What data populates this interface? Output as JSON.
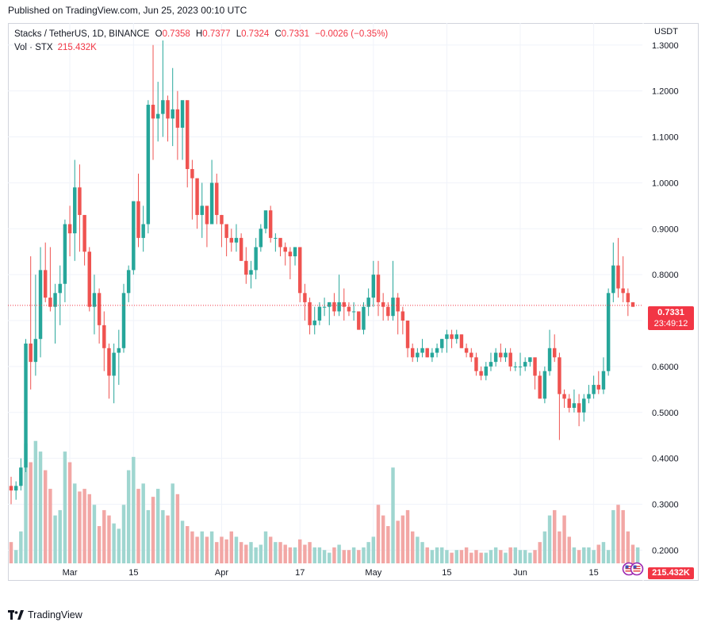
{
  "header": {
    "published": "Published on TradingView.com, Jun 25, 2023 00:10 UTC"
  },
  "legend": {
    "symbol": "Stacks / TetherUS, 1D, BINANCE",
    "o_label": "O",
    "o_value": "0.7358",
    "h_label": "H",
    "h_value": "0.7377",
    "l_label": "L",
    "l_value": "0.7324",
    "c_label": "C",
    "c_value": "0.7331",
    "change": "−0.0026 (−0.35%)",
    "vol_label": "Vol · STX",
    "vol_value": "215.432K"
  },
  "price_axis": {
    "currency": "USDT",
    "labels": [
      "1.3000",
      "1.2000",
      "1.1000",
      "1.0000",
      "0.9000",
      "0.8000",
      "0.7000",
      "0.6000",
      "0.5000",
      "0.4000",
      "0.3000",
      "0.2000"
    ]
  },
  "time_axis": {
    "labels": [
      "Mar",
      "15",
      "Apr",
      "17",
      "May",
      "15",
      "Jun",
      "15"
    ]
  },
  "last_price_tag": {
    "price": "0.7331",
    "countdown": "23:49:12"
  },
  "volume_tag": "215.432K",
  "footer": {
    "brand": "TradingView"
  },
  "colors": {
    "up": "#26a69a",
    "down": "#ef5350",
    "up_vol": "#9fd6d0",
    "down_vol": "#f2a7a5",
    "grid": "#f0f3fa",
    "last_line": "#f23645"
  },
  "chart_data": {
    "type": "candlestick",
    "title": "Stacks / TetherUS, 1D, BINANCE",
    "ylim": [
      0.18,
      1.31
    ],
    "xlabel": "",
    "ylabel": "USDT",
    "candles": [
      [
        0.34,
        0.36,
        0.3,
        0.33
      ],
      [
        0.33,
        0.35,
        0.31,
        0.34
      ],
      [
        0.34,
        0.4,
        0.33,
        0.38
      ],
      [
        0.38,
        0.66,
        0.37,
        0.65
      ],
      [
        0.65,
        0.84,
        0.55,
        0.61
      ],
      [
        0.61,
        0.8,
        0.58,
        0.66
      ],
      [
        0.66,
        0.86,
        0.62,
        0.81
      ],
      [
        0.81,
        0.87,
        0.74,
        0.75
      ],
      [
        0.75,
        0.86,
        0.72,
        0.73
      ],
      [
        0.73,
        0.78,
        0.65,
        0.76
      ],
      [
        0.76,
        0.82,
        0.69,
        0.78
      ],
      [
        0.78,
        0.92,
        0.74,
        0.91
      ],
      [
        0.91,
        0.95,
        0.84,
        0.89
      ],
      [
        0.89,
        1.05,
        0.83,
        0.99
      ],
      [
        0.99,
        1.04,
        0.85,
        0.93
      ],
      [
        0.93,
        0.92,
        0.82,
        0.85
      ],
      [
        0.85,
        0.86,
        0.72,
        0.73
      ],
      [
        0.73,
        0.8,
        0.67,
        0.76
      ],
      [
        0.76,
        0.77,
        0.65,
        0.69
      ],
      [
        0.69,
        0.72,
        0.59,
        0.64
      ],
      [
        0.64,
        0.65,
        0.53,
        0.58
      ],
      [
        0.58,
        0.65,
        0.52,
        0.63
      ],
      [
        0.63,
        0.68,
        0.56,
        0.64
      ],
      [
        0.64,
        0.78,
        0.63,
        0.76
      ],
      [
        0.76,
        0.82,
        0.74,
        0.81
      ],
      [
        0.81,
        0.96,
        0.8,
        0.96
      ],
      [
        0.96,
        1.02,
        0.86,
        0.88
      ],
      [
        0.88,
        0.95,
        0.85,
        0.91
      ],
      [
        0.91,
        1.18,
        0.89,
        1.17
      ],
      [
        1.17,
        1.3,
        1.05,
        1.14
      ],
      [
        1.14,
        1.22,
        1.09,
        1.15
      ],
      [
        1.15,
        1.31,
        1.1,
        1.18
      ],
      [
        1.18,
        1.19,
        1.09,
        1.14
      ],
      [
        1.14,
        1.25,
        1.08,
        1.16
      ],
      [
        1.16,
        1.2,
        1.05,
        1.12
      ],
      [
        1.12,
        1.17,
        1.05,
        1.18
      ],
      [
        1.18,
        1.17,
        0.99,
        1.03
      ],
      [
        1.03,
        1.05,
        0.92,
        1.01
      ],
      [
        1.01,
        1.0,
        0.9,
        0.93
      ],
      [
        0.93,
        1.0,
        0.88,
        0.95
      ],
      [
        0.95,
        0.94,
        0.86,
        0.91
      ],
      [
        0.91,
        1.05,
        0.91,
        1.0
      ],
      [
        1.0,
        1.02,
        0.91,
        0.93
      ],
      [
        0.93,
        0.93,
        0.86,
        0.91
      ],
      [
        0.91,
        0.9,
        0.84,
        0.88
      ],
      [
        0.88,
        0.9,
        0.85,
        0.87
      ],
      [
        0.87,
        0.91,
        0.85,
        0.88
      ],
      [
        0.88,
        0.89,
        0.83,
        0.83
      ],
      [
        0.83,
        0.86,
        0.78,
        0.8
      ],
      [
        0.8,
        0.83,
        0.77,
        0.81
      ],
      [
        0.81,
        0.88,
        0.79,
        0.86
      ],
      [
        0.86,
        0.91,
        0.85,
        0.9
      ],
      [
        0.9,
        0.93,
        0.89,
        0.94
      ],
      [
        0.94,
        0.95,
        0.87,
        0.88
      ],
      [
        0.88,
        0.89,
        0.85,
        0.88
      ],
      [
        0.88,
        0.87,
        0.84,
        0.86
      ],
      [
        0.86,
        0.87,
        0.82,
        0.85
      ],
      [
        0.85,
        0.86,
        0.79,
        0.84
      ],
      [
        0.84,
        0.86,
        0.82,
        0.86
      ],
      [
        0.86,
        0.85,
        0.74,
        0.76
      ],
      [
        0.76,
        0.78,
        0.7,
        0.74
      ],
      [
        0.74,
        0.75,
        0.67,
        0.69
      ],
      [
        0.69,
        0.73,
        0.67,
        0.7
      ],
      [
        0.7,
        0.74,
        0.69,
        0.73
      ],
      [
        0.73,
        0.75,
        0.71,
        0.73
      ],
      [
        0.73,
        0.74,
        0.69,
        0.74
      ],
      [
        0.74,
        0.76,
        0.71,
        0.72
      ],
      [
        0.72,
        0.8,
        0.71,
        0.74
      ],
      [
        0.74,
        0.77,
        0.7,
        0.73
      ],
      [
        0.73,
        0.74,
        0.71,
        0.72
      ],
      [
        0.72,
        0.74,
        0.7,
        0.72
      ],
      [
        0.72,
        0.72,
        0.68,
        0.68
      ],
      [
        0.68,
        0.74,
        0.67,
        0.73
      ],
      [
        0.73,
        0.77,
        0.71,
        0.75
      ],
      [
        0.75,
        0.83,
        0.73,
        0.8
      ],
      [
        0.8,
        0.83,
        0.71,
        0.74
      ],
      [
        0.74,
        0.76,
        0.7,
        0.73
      ],
      [
        0.73,
        0.74,
        0.7,
        0.71
      ],
      [
        0.71,
        0.83,
        0.7,
        0.75
      ],
      [
        0.75,
        0.76,
        0.67,
        0.72
      ],
      [
        0.72,
        0.73,
        0.67,
        0.7
      ],
      [
        0.7,
        0.7,
        0.62,
        0.64
      ],
      [
        0.64,
        0.65,
        0.61,
        0.62
      ],
      [
        0.62,
        0.64,
        0.61,
        0.63
      ],
      [
        0.63,
        0.66,
        0.62,
        0.64
      ],
      [
        0.64,
        0.64,
        0.62,
        0.62
      ],
      [
        0.62,
        0.64,
        0.61,
        0.63
      ],
      [
        0.63,
        0.65,
        0.62,
        0.64
      ],
      [
        0.64,
        0.66,
        0.63,
        0.66
      ],
      [
        0.66,
        0.68,
        0.63,
        0.67
      ],
      [
        0.67,
        0.68,
        0.64,
        0.66
      ],
      [
        0.66,
        0.68,
        0.65,
        0.67
      ],
      [
        0.67,
        0.67,
        0.64,
        0.64
      ],
      [
        0.64,
        0.65,
        0.62,
        0.63
      ],
      [
        0.63,
        0.64,
        0.61,
        0.62
      ],
      [
        0.62,
        0.63,
        0.58,
        0.59
      ],
      [
        0.59,
        0.6,
        0.57,
        0.58
      ],
      [
        0.58,
        0.61,
        0.57,
        0.6
      ],
      [
        0.6,
        0.63,
        0.59,
        0.61
      ],
      [
        0.61,
        0.64,
        0.6,
        0.63
      ],
      [
        0.63,
        0.65,
        0.61,
        0.62
      ],
      [
        0.62,
        0.64,
        0.61,
        0.63
      ],
      [
        0.63,
        0.64,
        0.59,
        0.6
      ],
      [
        0.6,
        0.61,
        0.59,
        0.6
      ],
      [
        0.6,
        0.63,
        0.58,
        0.6
      ],
      [
        0.6,
        0.62,
        0.59,
        0.61
      ],
      [
        0.61,
        0.62,
        0.6,
        0.62
      ],
      [
        0.62,
        0.61,
        0.55,
        0.58
      ],
      [
        0.58,
        0.59,
        0.53,
        0.53
      ],
      [
        0.53,
        0.6,
        0.52,
        0.59
      ],
      [
        0.59,
        0.68,
        0.58,
        0.64
      ],
      [
        0.64,
        0.67,
        0.61,
        0.62
      ],
      [
        0.62,
        0.63,
        0.44,
        0.54
      ],
      [
        0.54,
        0.55,
        0.51,
        0.53
      ],
      [
        0.53,
        0.54,
        0.5,
        0.51
      ],
      [
        0.51,
        0.55,
        0.5,
        0.52
      ],
      [
        0.52,
        0.54,
        0.47,
        0.5
      ],
      [
        0.5,
        0.54,
        0.48,
        0.53
      ],
      [
        0.53,
        0.56,
        0.52,
        0.54
      ],
      [
        0.54,
        0.58,
        0.53,
        0.56
      ],
      [
        0.56,
        0.59,
        0.54,
        0.55
      ],
      [
        0.55,
        0.62,
        0.54,
        0.59
      ],
      [
        0.59,
        0.77,
        0.58,
        0.76
      ],
      [
        0.76,
        0.87,
        0.74,
        0.82
      ],
      [
        0.82,
        0.88,
        0.75,
        0.77
      ],
      [
        0.77,
        0.84,
        0.74,
        0.76
      ],
      [
        0.76,
        0.77,
        0.71,
        0.74
      ],
      [
        0.74,
        0.74,
        0.73,
        0.73
      ]
    ],
    "volume_ylim": [
      0,
      0.48
    ],
    "volumes": [
      0.08,
      0.05,
      0.12,
      0.45,
      0.38,
      0.46,
      0.42,
      0.35,
      0.28,
      0.18,
      0.2,
      0.42,
      0.38,
      0.3,
      0.27,
      0.28,
      0.26,
      0.22,
      0.14,
      0.2,
      0.18,
      0.15,
      0.13,
      0.22,
      0.35,
      0.4,
      0.28,
      0.3,
      0.2,
      0.25,
      0.28,
      0.2,
      0.18,
      0.3,
      0.26,
      0.16,
      0.14,
      0.12,
      0.1,
      0.12,
      0.1,
      0.12,
      0.08,
      0.1,
      0.09,
      0.12,
      0.1,
      0.08,
      0.07,
      0.08,
      0.06,
      0.07,
      0.12,
      0.1,
      0.08,
      0.08,
      0.07,
      0.06,
      0.06,
      0.09,
      0.07,
      0.08,
      0.06,
      0.06,
      0.05,
      0.04,
      0.06,
      0.07,
      0.05,
      0.05,
      0.06,
      0.05,
      0.06,
      0.08,
      0.1,
      0.22,
      0.18,
      0.14,
      0.36,
      0.16,
      0.18,
      0.2,
      0.12,
      0.1,
      0.08,
      0.06,
      0.05,
      0.06,
      0.06,
      0.05,
      0.04,
      0.05,
      0.05,
      0.06,
      0.04,
      0.05,
      0.04,
      0.04,
      0.05,
      0.06,
      0.05,
      0.04,
      0.06,
      0.06,
      0.05,
      0.05,
      0.04,
      0.05,
      0.08,
      0.12,
      0.18,
      0.2,
      0.12,
      0.18,
      0.1,
      0.06,
      0.05,
      0.06,
      0.06,
      0.05,
      0.07,
      0.08,
      0.05,
      0.2,
      0.22,
      0.2,
      0.12,
      0.07,
      0.06
    ],
    "last_price": 0.7331
  }
}
